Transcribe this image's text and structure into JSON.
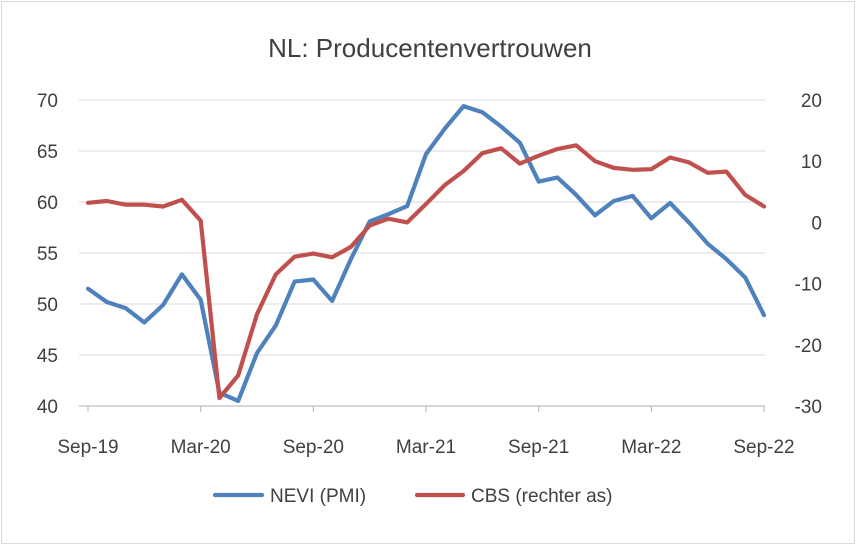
{
  "chart_data": {
    "type": "line",
    "title": "NL: Producentenvertrouwen",
    "x_tick_labels": [
      "Sep-19",
      "Mar-20",
      "Sep-20",
      "Mar-21",
      "Sep-21",
      "Mar-22",
      "Sep-22"
    ],
    "y_left": {
      "ylim": [
        40,
        70
      ],
      "ticks": [
        "40",
        "45",
        "50",
        "55",
        "60",
        "65",
        "70"
      ]
    },
    "y_right": {
      "ylim": [
        -30,
        20
      ],
      "ticks": [
        "-30",
        "-20",
        "-10",
        "0",
        "10",
        "20"
      ]
    },
    "x": [
      "2019-09",
      "2019-10",
      "2019-11",
      "2019-12",
      "2020-01",
      "2020-02",
      "2020-03",
      "2020-04",
      "2020-05",
      "2020-06",
      "2020-07",
      "2020-08",
      "2020-09",
      "2020-10",
      "2020-11",
      "2020-12",
      "2021-01",
      "2021-02",
      "2021-03",
      "2021-04",
      "2021-05",
      "2021-06",
      "2021-07",
      "2021-08",
      "2021-09",
      "2021-10",
      "2021-11",
      "2021-12",
      "2022-01",
      "2022-02",
      "2022-03",
      "2022-04",
      "2022-05",
      "2022-06",
      "2022-07",
      "2022-08",
      "2022-09"
    ],
    "series": [
      {
        "name": "NEVI (PMI)",
        "axis": "left",
        "color": "#4f81bd",
        "values": [
          51.5,
          50.2,
          49.6,
          48.2,
          49.9,
          52.9,
          50.4,
          41.3,
          40.5,
          45.2,
          47.9,
          52.2,
          52.4,
          50.3,
          54.4,
          58.1,
          58.8,
          59.6,
          64.7,
          67.2,
          69.4,
          68.8,
          67.4,
          65.8,
          62.0,
          62.4,
          60.7,
          58.7,
          60.1,
          60.6,
          58.4,
          59.9,
          58.0,
          55.9,
          54.4,
          52.6,
          48.9
        ]
      },
      {
        "name": "CBS (rechter as)",
        "axis": "right",
        "color": "#c0504d",
        "values": [
          3.2,
          3.5,
          2.9,
          2.9,
          2.6,
          3.7,
          0.3,
          -28.7,
          -25.0,
          -15.0,
          -8.5,
          -5.6,
          -5.1,
          -5.7,
          -4.0,
          -0.5,
          0.6,
          0.0,
          3.0,
          6.1,
          8.4,
          11.3,
          12.1,
          9.6,
          10.9,
          12.0,
          12.6,
          10.0,
          8.9,
          8.6,
          8.7,
          10.6,
          9.8,
          8.1,
          8.3,
          4.5,
          2.6
        ]
      }
    ],
    "legend": {
      "position": "bottom",
      "entries": [
        "NEVI (PMI)",
        "CBS (rechter as)"
      ]
    },
    "grid": "horizontal"
  }
}
